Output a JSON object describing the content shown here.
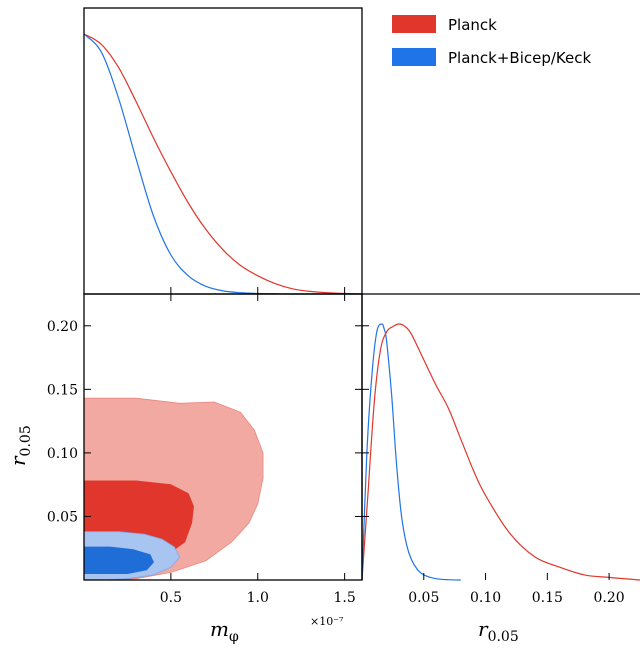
{
  "chart_data": {
    "type": "triangle-plot",
    "legend": {
      "placement": "top-right",
      "entries": [
        {
          "label": "Planck",
          "color": "#e0362c"
        },
        {
          "label": "Planck+Bicep/Keck",
          "color": "#1f74e8"
        }
      ]
    },
    "colors": {
      "planck_line": "#e0362c",
      "planck_68": "#e0362c",
      "planck_95": "#f2a9a2",
      "bk_line": "#1f74e8",
      "bk_68": "#1f6ed8",
      "bk_95": "#a8c4f0"
    },
    "axes": {
      "m": {
        "label": "m",
        "subscript": "φ",
        "range": [
          0.0,
          1.6
        ],
        "ticks": [
          "0.5",
          "1.0",
          "1.5"
        ],
        "tick_values": [
          0.5,
          1.0,
          1.5
        ],
        "exponent_label": "×10⁻⁷"
      },
      "r": {
        "label": "r",
        "subscript": "0.05",
        "range": [
          0.0,
          0.225
        ],
        "ticks": [
          "0.05",
          "0.10",
          "0.15",
          "0.20"
        ],
        "tick_values": [
          0.05,
          0.1,
          0.15,
          0.2
        ]
      }
    },
    "panels": {
      "m_marginal": {
        "series": [
          {
            "name": "Planck",
            "x": [
              0.0,
              0.1,
              0.2,
              0.3,
              0.4,
              0.5,
              0.6,
              0.7,
              0.8,
              0.9,
              1.0,
              1.1,
              1.2,
              1.3,
              1.4,
              1.5,
              1.6
            ],
            "y": [
              1.0,
              0.96,
              0.87,
              0.74,
              0.6,
              0.47,
              0.35,
              0.25,
              0.17,
              0.11,
              0.07,
              0.04,
              0.02,
              0.01,
              0.005,
              0.002,
              0.0
            ]
          },
          {
            "name": "Planck+Bicep/Keck",
            "x": [
              0.0,
              0.1,
              0.2,
              0.3,
              0.4,
              0.5,
              0.6,
              0.7,
              0.8,
              0.9,
              1.0,
              1.1,
              1.2,
              1.6
            ],
            "y": [
              1.0,
              0.93,
              0.75,
              0.52,
              0.3,
              0.15,
              0.07,
              0.03,
              0.012,
              0.005,
              0.002,
              0.001,
              0.0,
              0.0
            ]
          }
        ]
      },
      "r_marginal": {
        "series": [
          {
            "name": "Planck",
            "x": [
              0.0,
              0.005,
              0.01,
              0.015,
              0.02,
              0.025,
              0.03,
              0.035,
              0.04,
              0.05,
              0.06,
              0.07,
              0.08,
              0.09,
              0.1,
              0.12,
              0.14,
              0.16,
              0.18,
              0.2,
              0.225
            ],
            "y": [
              0.0,
              0.35,
              0.7,
              0.9,
              0.97,
              0.99,
              1.0,
              0.99,
              0.96,
              0.86,
              0.76,
              0.67,
              0.55,
              0.43,
              0.33,
              0.18,
              0.09,
              0.05,
              0.02,
              0.01,
              0.0
            ]
          },
          {
            "name": "Planck+Bicep/Keck",
            "x": [
              0.0,
              0.004,
              0.008,
              0.012,
              0.016,
              0.018,
              0.02,
              0.024,
              0.028,
              0.032,
              0.036,
              0.04,
              0.045,
              0.05,
              0.06,
              0.07,
              0.08
            ],
            "y": [
              0.0,
              0.5,
              0.8,
              0.97,
              1.0,
              0.98,
              0.93,
              0.72,
              0.45,
              0.25,
              0.14,
              0.08,
              0.04,
              0.02,
              0.005,
              0.001,
              0.0
            ]
          }
        ]
      },
      "joint": {
        "contours": [
          {
            "series": "Planck",
            "level": "95%",
            "m": [
              0.0,
              0.3,
              0.55,
              0.75,
              0.9,
              0.98,
              1.03,
              1.03,
              1.0,
              0.95,
              0.85,
              0.7,
              0.5,
              0.3,
              0.1,
              0.0
            ],
            "r": [
              0.143,
              0.143,
              0.139,
              0.14,
              0.132,
              0.118,
              0.1,
              0.08,
              0.06,
              0.045,
              0.03,
              0.015,
              0.006,
              0.001,
              0.0,
              0.0
            ]
          },
          {
            "series": "Planck",
            "level": "68%",
            "m": [
              0.0,
              0.3,
              0.5,
              0.6,
              0.63,
              0.62,
              0.58,
              0.5,
              0.3,
              0.0
            ],
            "r": [
              0.078,
              0.078,
              0.075,
              0.068,
              0.058,
              0.045,
              0.03,
              0.022,
              0.021,
              0.021
            ]
          },
          {
            "series": "Planck+Bicep/Keck",
            "level": "95%",
            "m": [
              0.0,
              0.2,
              0.35,
              0.45,
              0.52,
              0.55,
              0.5,
              0.4,
              0.25,
              0.1,
              0.0
            ],
            "r": [
              0.038,
              0.038,
              0.036,
              0.032,
              0.026,
              0.018,
              0.01,
              0.004,
              0.001,
              0.0,
              0.0
            ]
          },
          {
            "series": "Planck+Bicep/Keck",
            "level": "68%",
            "m": [
              0.0,
              0.15,
              0.28,
              0.38,
              0.4,
              0.36,
              0.25,
              0.12,
              0.0
            ],
            "r": [
              0.026,
              0.026,
              0.024,
              0.02,
              0.014,
              0.008,
              0.005,
              0.005,
              0.005
            ]
          }
        ]
      }
    }
  }
}
